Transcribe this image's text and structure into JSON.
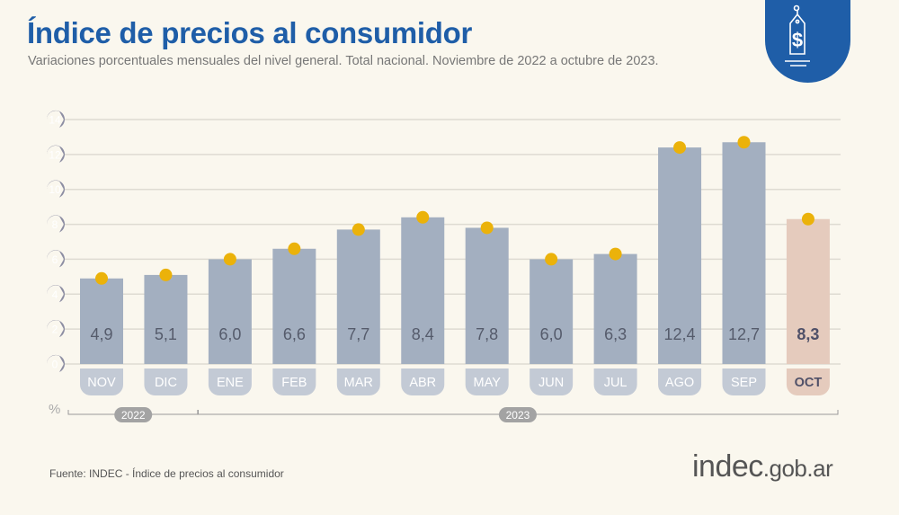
{
  "title": "Índice de precios al consumidor",
  "subtitle": "Variaciones porcentuales mensuales del nivel general. Total nacional. Noviembre de 2022 a octubre de 2023.",
  "source": "Fuente: INDEC - Índice de precios al consumidor",
  "logo": {
    "main": "indec",
    "domain": ".gob.ar"
  },
  "badge_icon": "price-tag-dollar-icon",
  "colors": {
    "title": "#1f5ea8",
    "bar": "#a3afc0",
    "highlight_bar": "#e5cbbd",
    "dot": "#ebb20a",
    "axis_badge": "#8d8ea3"
  },
  "chart_data": {
    "type": "bar",
    "title": "Índice de precios al consumidor",
    "ylabel": "%",
    "ylim": [
      0,
      14
    ],
    "yticks": [
      0,
      2,
      4,
      6,
      8,
      10,
      12,
      14
    ],
    "grid": true,
    "categories": [
      "NOV",
      "DIC",
      "ENE",
      "FEB",
      "MAR",
      "ABR",
      "MAY",
      "JUN",
      "JUL",
      "AGO",
      "SEP",
      "OCT"
    ],
    "values": [
      4.9,
      5.1,
      6.0,
      6.6,
      7.7,
      8.4,
      7.8,
      6.0,
      6.3,
      12.4,
      12.7,
      8.3
    ],
    "value_labels": [
      "4,9",
      "5,1",
      "6,0",
      "6,6",
      "7,7",
      "8,4",
      "7,8",
      "6,0",
      "6,3",
      "12,4",
      "12,7",
      "8,3"
    ],
    "highlight": "OCT",
    "years": [
      {
        "label": "2022",
        "from": "NOV",
        "to": "DIC"
      },
      {
        "label": "2023",
        "from": "ENE",
        "to": "OCT"
      }
    ]
  }
}
